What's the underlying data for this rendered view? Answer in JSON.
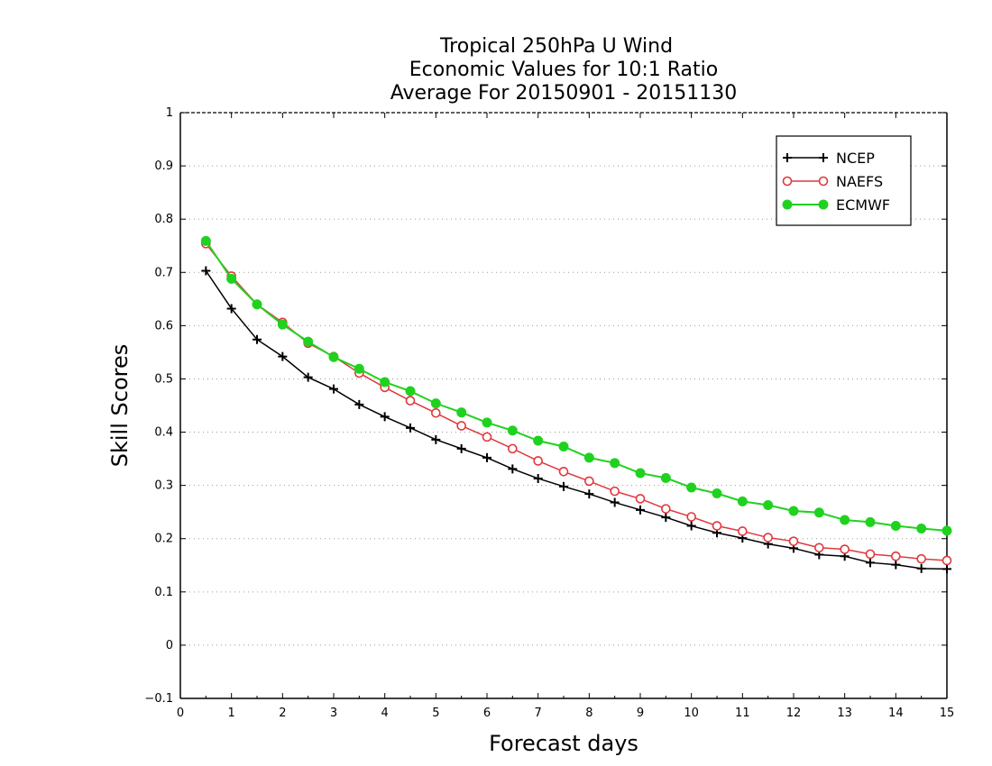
{
  "chart_data": {
    "type": "line",
    "title_lines": [
      "Tropical 250hPa U Wind",
      "Economic Values for 10:1 Ratio",
      "Average For 20150901 - 20151130"
    ],
    "xlabel": "Forecast days",
    "ylabel": "Skill Scores",
    "xlim": [
      0,
      15
    ],
    "ylim": [
      -0.1,
      1
    ],
    "xticks": [
      "0",
      "1",
      "2",
      "3",
      "4",
      "5",
      "6",
      "7",
      "8",
      "9",
      "10",
      "11",
      "12",
      "13",
      "14",
      "15"
    ],
    "yticks": [
      "−0.1",
      "0",
      "0.1",
      "0.2",
      "0.3",
      "0.4",
      "0.5",
      "0.6",
      "0.7",
      "0.8",
      "0.9",
      "1"
    ],
    "grid": true,
    "legend_position": "top-right",
    "x": [
      0.5,
      1,
      1.5,
      2,
      2.5,
      3,
      3.5,
      4,
      4.5,
      5,
      5.5,
      6,
      6.5,
      7,
      7.5,
      8,
      8.5,
      9,
      9.5,
      10,
      10.5,
      11,
      11.5,
      12,
      12.5,
      13,
      13.5,
      14,
      14.5,
      15
    ],
    "series": [
      {
        "name": "NCEP",
        "color": "#000000",
        "marker": "plus",
        "values": [
          0.703,
          0.632,
          0.574,
          0.542,
          0.503,
          0.481,
          0.452,
          0.429,
          0.408,
          0.386,
          0.369,
          0.352,
          0.331,
          0.313,
          0.298,
          0.284,
          0.268,
          0.254,
          0.24,
          0.224,
          0.211,
          0.201,
          0.19,
          0.182,
          0.17,
          0.167,
          0.155,
          0.151,
          0.144,
          0.143
        ]
      },
      {
        "name": "NAEFS",
        "color": "#e0383c",
        "marker": "open-circle",
        "values": [
          0.754,
          0.693,
          0.64,
          0.606,
          0.567,
          0.542,
          0.511,
          0.484,
          0.459,
          0.436,
          0.412,
          0.391,
          0.369,
          0.346,
          0.326,
          0.308,
          0.289,
          0.275,
          0.256,
          0.241,
          0.224,
          0.214,
          0.202,
          0.195,
          0.183,
          0.18,
          0.171,
          0.167,
          0.162,
          0.159
        ]
      },
      {
        "name": "ECMWF",
        "color": "#1fd21f",
        "marker": "filled-circle",
        "values": [
          0.759,
          0.688,
          0.64,
          0.602,
          0.57,
          0.541,
          0.519,
          0.494,
          0.477,
          0.454,
          0.437,
          0.418,
          0.403,
          0.384,
          0.373,
          0.352,
          0.342,
          0.323,
          0.314,
          0.296,
          0.285,
          0.27,
          0.263,
          0.252,
          0.249,
          0.235,
          0.231,
          0.224,
          0.219,
          0.215
        ]
      }
    ]
  }
}
